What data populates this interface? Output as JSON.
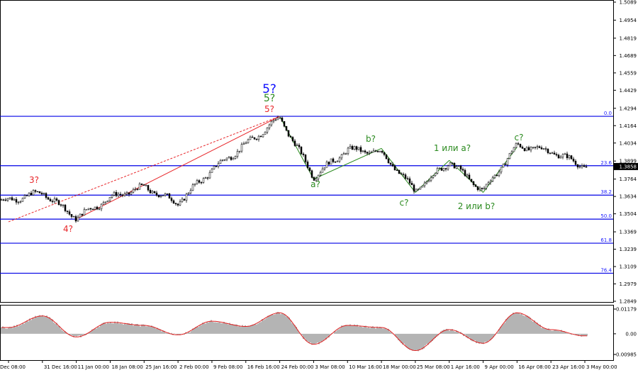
{
  "colors": {
    "background": "#ffffff",
    "fib_line": "#0000e6",
    "candle": "#000000",
    "wave_red": "#e8262a",
    "wave_green": "#2a8a1e",
    "wave_blue": "#1010ff",
    "price_badge_bg": "#000000",
    "price_badge_text": "#ffffff",
    "osc_histogram": "#b4b4b4",
    "osc_signal": "#e02020"
  },
  "chart_data": [
    {
      "type": "candlestick",
      "price_axis": {
        "ticks": [
          "1.5089",
          "1.4954",
          "1.4819",
          "1.4689",
          "1.4559",
          "1.4429",
          "1.4294",
          "1.4164",
          "1.4034",
          "1.3899",
          "1.3764",
          "1.3634",
          "1.3504",
          "1.3369",
          "1.3239",
          "1.3109",
          "1.2979",
          "1.2849"
        ],
        "ylim": [
          1.2849,
          1.5089
        ]
      },
      "current_price": "1.3858",
      "time_axis": {
        "ticks": [
          "Dec 08:00",
          "31 Dec 16:00",
          "11 Jan 00:00",
          "18 Jan 08:00",
          "25 Jan 16:00",
          "2 Feb 00:00",
          "9 Feb 08:00",
          "16 Feb 16:00",
          "24 Feb 00:00",
          "3 Mar 08:00",
          "10 Mar 16:00",
          "18 Mar 00:00",
          "25 Mar 08:00",
          "1 Apr 16:00",
          "9 Apr 00:00",
          "16 Apr 08:00",
          "23 Apr 16:00",
          "3 May 00:00"
        ]
      },
      "fib_levels": [
        {
          "label": "0.0",
          "price": 1.4234
        },
        {
          "label": "23.6",
          "price": 1.3864
        },
        {
          "label": "38.2",
          "price": 1.3644
        },
        {
          "label": "50.0",
          "price": 1.3464
        },
        {
          "label": "61.8",
          "price": 1.3284
        },
        {
          "label": "76.4",
          "price": 1.3059
        }
      ],
      "wave_labels": [
        {
          "text": "5?",
          "color": "blue"
        },
        {
          "text": "5?",
          "color": "green"
        },
        {
          "text": "5?",
          "color": "red"
        },
        {
          "text": "3?",
          "color": "red"
        },
        {
          "text": "4?",
          "color": "red"
        },
        {
          "text": "a?",
          "color": "green"
        },
        {
          "text": "b?",
          "color": "green"
        },
        {
          "text": "c?",
          "color": "green"
        },
        {
          "text": "1 или a?",
          "color": "green"
        },
        {
          "text": "2 или b?",
          "color": "green"
        },
        {
          "text": "c?",
          "color": "green"
        }
      ],
      "trendlines": [
        {
          "style": "solid",
          "color": "red",
          "from": [
            "11 Jan 00:00",
            1.3464
          ],
          "to": [
            "24 Feb 00:00",
            1.4234
          ]
        },
        {
          "style": "dashed",
          "color": "red",
          "from": [
            "Dec 08:00",
            1.3444
          ],
          "to": [
            "24 Feb 00:00",
            1.4234
          ]
        },
        {
          "style": "solid",
          "color": "green",
          "from": [
            "24 Feb 00:00",
            1.4234
          ],
          "to": [
            "3 Mar 08:00",
            1.3764
          ]
        },
        {
          "style": "solid",
          "color": "green",
          "from": [
            "3 Mar 08:00",
            1.3764
          ],
          "to": [
            "18 Mar 00:00",
            1.3994
          ]
        },
        {
          "style": "solid",
          "color": "green",
          "from": [
            "18 Mar 00:00",
            1.3994
          ],
          "to": [
            "25 Mar 08:00",
            1.3664
          ]
        },
        {
          "style": "solid",
          "color": "green",
          "from": [
            "25 Mar 08:00",
            1.3664
          ],
          "to": [
            "1 Apr 16:00",
            1.3904
          ]
        },
        {
          "style": "solid",
          "color": "green",
          "from": [
            "1 Apr 16:00",
            1.3904
          ],
          "to": [
            "9 Apr 00:00",
            1.3664
          ]
        },
        {
          "style": "solid",
          "color": "green",
          "from": [
            "9 Apr 00:00",
            1.3664
          ],
          "to": [
            "16 Apr 08:00",
            1.4004
          ]
        }
      ],
      "path": [
        [
          "Dec 08:00",
          1.3604
        ],
        [
          "31 Dec 16:00",
          1.3664
        ],
        [
          "11 Jan 00:00",
          1.3474
        ],
        [
          "18 Jan 08:00",
          1.3624
        ],
        [
          "25 Jan 16:00",
          1.3704
        ],
        [
          "2 Feb 00:00",
          1.3584
        ],
        [
          "9 Feb 08:00",
          1.3834
        ],
        [
          "16 Feb 16:00",
          1.4024
        ],
        [
          "24 Feb 00:00",
          1.4224
        ],
        [
          "3 Mar 08:00",
          1.3784
        ],
        [
          "10 Mar 16:00",
          1.3984
        ],
        [
          "18 Mar 00:00",
          1.3964
        ],
        [
          "25 Mar 08:00",
          1.3674
        ],
        [
          "1 Apr 16:00",
          1.3894
        ],
        [
          "9 Apr 00:00",
          1.3674
        ],
        [
          "16 Apr 08:00",
          1.4014
        ],
        [
          "23 Apr 16:00",
          1.3974
        ],
        [
          "3 May 00:00",
          1.3858
        ]
      ]
    },
    {
      "type": "oscillator",
      "ticks": [
        "0.01179",
        "0.00",
        "-0.00985"
      ],
      "ylim": [
        -0.00985,
        0.01179
      ],
      "x": [
        "Dec 08:00",
        "31 Dec 16:00",
        "11 Jan 00:00",
        "18 Jan 08:00",
        "25 Jan 16:00",
        "2 Feb 00:00",
        "9 Feb 08:00",
        "16 Feb 16:00",
        "24 Feb 00:00",
        "3 Mar 08:00",
        "10 Mar 16:00",
        "18 Mar 00:00",
        "25 Mar 08:00",
        "1 Apr 16:00",
        "9 Apr 00:00",
        "16 Apr 08:00",
        "23 Apr 16:00",
        "3 May 00:00"
      ],
      "values": [
        0.003,
        0.0085,
        -0.0015,
        0.0055,
        0.004,
        -0.0005,
        0.006,
        0.0035,
        0.01,
        -0.005,
        0.004,
        0.003,
        -0.008,
        0.002,
        -0.0045,
        0.01,
        0.002,
        -0.001
      ]
    }
  ]
}
